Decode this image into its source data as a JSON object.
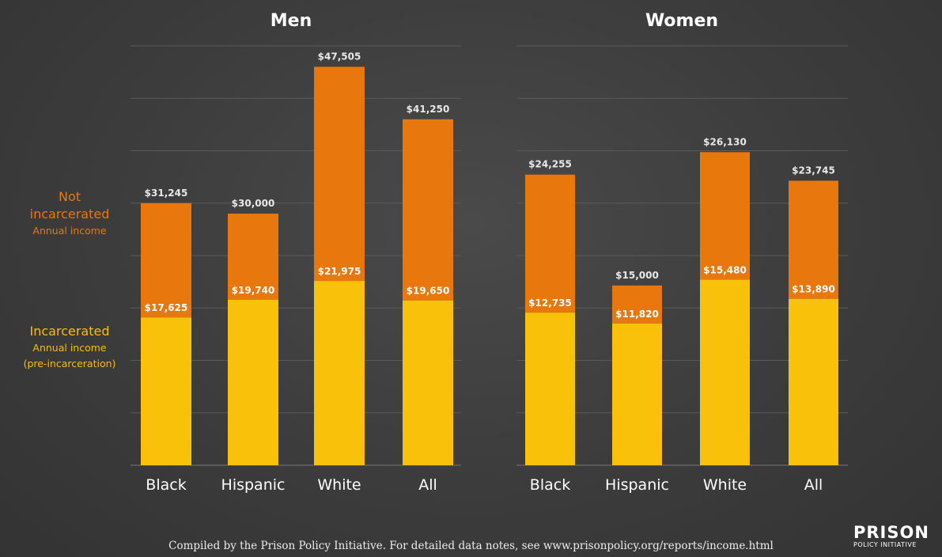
{
  "colors": {
    "background": "#3f3f3f",
    "not_incarcerated": "#e8770e",
    "incarcerated": "#f9c10a",
    "legend_incarcerated_text": "#f5bf0a"
  },
  "legend": {
    "not_incarcerated_title_1": "Not",
    "not_incarcerated_title_2": "incarcerated",
    "not_incarcerated_sub": "Annual income",
    "incarcerated_title": "Incarcerated",
    "incarcerated_sub_1": "Annual income",
    "incarcerated_sub_2": "(pre-incarceration)"
  },
  "chart_data": [
    {
      "type": "bar",
      "title": "Men",
      "categories": [
        "Black",
        "Hispanic",
        "White",
        "All"
      ],
      "series": [
        {
          "name": "Not incarcerated",
          "values": [
            31245,
            30000,
            47505,
            41250
          ],
          "labels": [
            "$31,245",
            "$30,000",
            "$47,505",
            "$41,250"
          ]
        },
        {
          "name": "Incarcerated",
          "values": [
            17625,
            19740,
            21975,
            19650
          ],
          "labels": [
            "$17,625",
            "$19,740",
            "$21,975",
            "$19,650"
          ]
        }
      ],
      "ylim": [
        0,
        50000
      ],
      "grid": true
    },
    {
      "type": "bar",
      "title": "Women",
      "categories": [
        "Black",
        "Hispanic",
        "White",
        "All"
      ],
      "series": [
        {
          "name": "Not incarcerated",
          "values": [
            24255,
            15000,
            26130,
            23745
          ],
          "labels": [
            "$24,255",
            "$15,000",
            "$26,130",
            "$23,745"
          ]
        },
        {
          "name": "Incarcerated",
          "values": [
            12735,
            11820,
            15480,
            13890
          ],
          "labels": [
            "$12,735",
            "$11,820",
            "$15,480",
            "$13,890"
          ]
        }
      ],
      "ylim": [
        0,
        35000
      ],
      "grid": true
    }
  ],
  "footer": {
    "note": "Compiled by the Prison Policy Initiative. For detailed data notes, see www.prisonpolicy.org/reports/income.html"
  },
  "logo": {
    "main": "PRISON",
    "sub": "POLICY INITIATIVE"
  }
}
